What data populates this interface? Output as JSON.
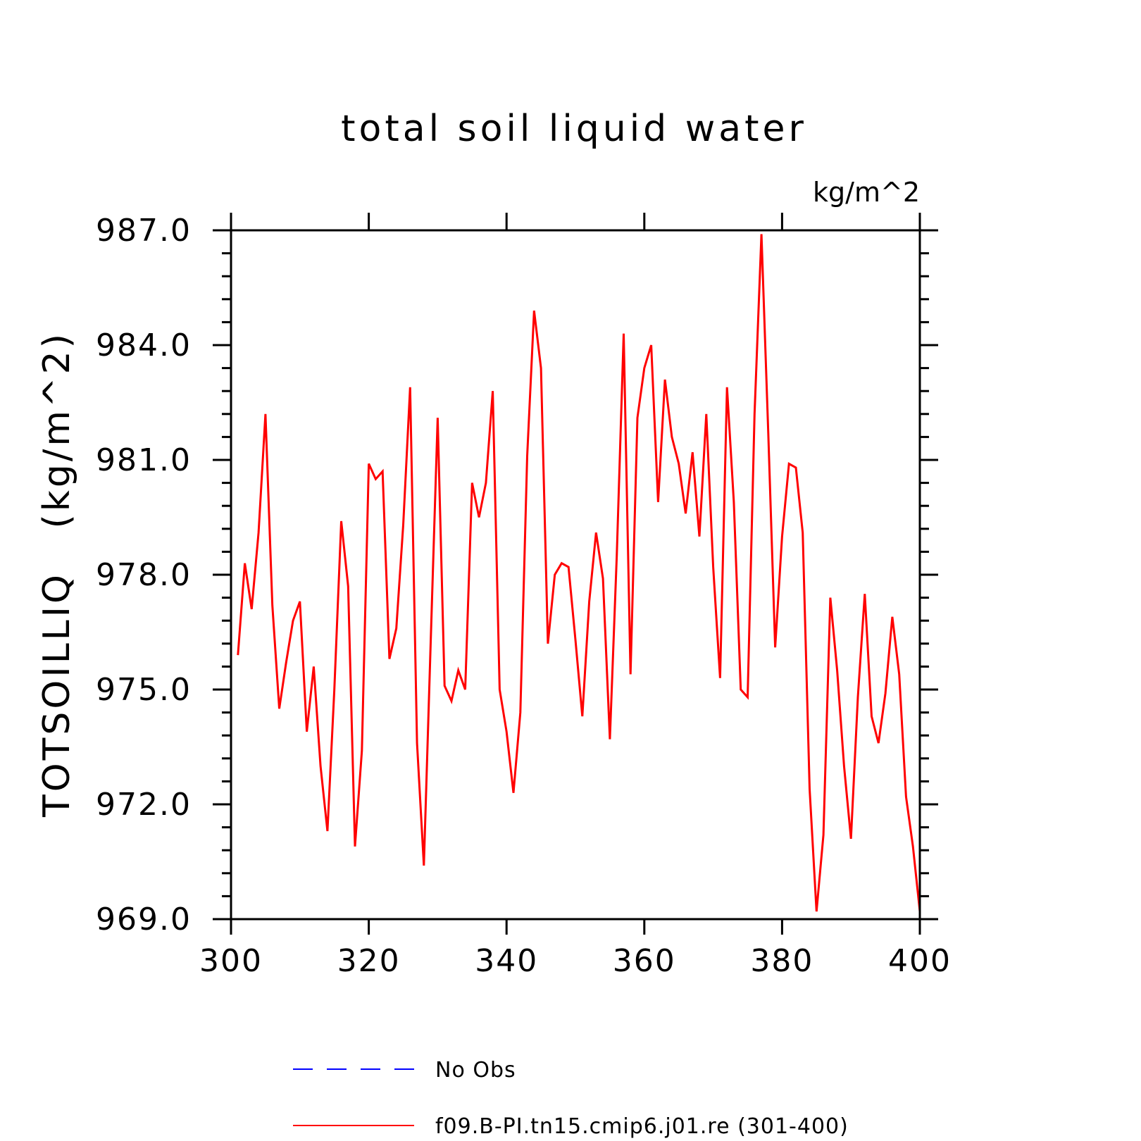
{
  "chart_data": {
    "type": "line",
    "title": "total soil liquid water",
    "units_label": "kg/m^2",
    "ylabel": "TOTSOILLIQ   (kg/m^2)",
    "xlabel": "",
    "xlim": [
      300,
      400
    ],
    "ylim": [
      969.0,
      987.0
    ],
    "x_ticks": [
      "300",
      "320",
      "340",
      "360",
      "380",
      "400"
    ],
    "y_ticks": [
      "969.0",
      "972.0",
      "975.0",
      "978.0",
      "981.0",
      "984.0",
      "987.0"
    ],
    "grid": false,
    "legend_position": "bottom",
    "series": [
      {
        "name": "No Obs",
        "color": "#0000ff",
        "dash": "dashed",
        "x": [],
        "y": []
      },
      {
        "name": "f09.B-PI.tn15.cmip6.j01.re (301-400)",
        "color": "#ff0000",
        "dash": "solid",
        "x": [
          301,
          302,
          303,
          304,
          305,
          306,
          307,
          308,
          309,
          310,
          311,
          312,
          313,
          314,
          315,
          316,
          317,
          318,
          319,
          320,
          321,
          322,
          323,
          324,
          325,
          326,
          327,
          328,
          329,
          330,
          331,
          332,
          333,
          334,
          335,
          336,
          337,
          338,
          339,
          340,
          341,
          342,
          343,
          344,
          345,
          346,
          347,
          348,
          349,
          350,
          351,
          352,
          353,
          354,
          355,
          356,
          357,
          358,
          359,
          360,
          361,
          362,
          363,
          364,
          365,
          366,
          367,
          368,
          369,
          370,
          371,
          372,
          373,
          374,
          375,
          376,
          377,
          378,
          379,
          380,
          381,
          382,
          383,
          384,
          385,
          386,
          387,
          388,
          389,
          390,
          391,
          392,
          393,
          394,
          395,
          396,
          397,
          398,
          399,
          400
        ],
        "y": [
          975.9,
          978.3,
          977.1,
          979.1,
          982.2,
          977.2,
          974.5,
          975.7,
          976.8,
          977.3,
          973.9,
          975.6,
          973.0,
          971.3,
          975.0,
          979.4,
          977.7,
          970.9,
          973.4,
          980.9,
          980.5,
          980.7,
          975.8,
          976.6,
          979.3,
          982.9,
          973.6,
          970.4,
          976.3,
          982.1,
          975.1,
          974.7,
          975.5,
          975.0,
          980.4,
          979.5,
          980.4,
          982.8,
          975.0,
          973.9,
          972.3,
          974.4,
          981.1,
          984.9,
          983.4,
          976.2,
          978.0,
          978.3,
          978.2,
          976.3,
          974.3,
          977.3,
          979.1,
          977.9,
          973.7,
          978.5,
          984.3,
          975.4,
          982.1,
          983.4,
          984.0,
          979.9,
          983.1,
          981.6,
          980.9,
          979.6,
          981.2,
          979.0,
          982.2,
          978.2,
          975.3,
          982.9,
          979.9,
          975.0,
          974.8,
          982.2,
          986.9,
          981.7,
          976.1,
          979.0,
          980.9,
          980.8,
          979.1,
          972.4,
          969.2,
          971.2,
          977.4,
          975.5,
          973.0,
          971.1,
          974.8,
          977.5,
          974.3,
          973.6,
          974.9,
          976.9,
          975.4,
          972.2,
          970.9,
          969.2
        ]
      }
    ]
  }
}
